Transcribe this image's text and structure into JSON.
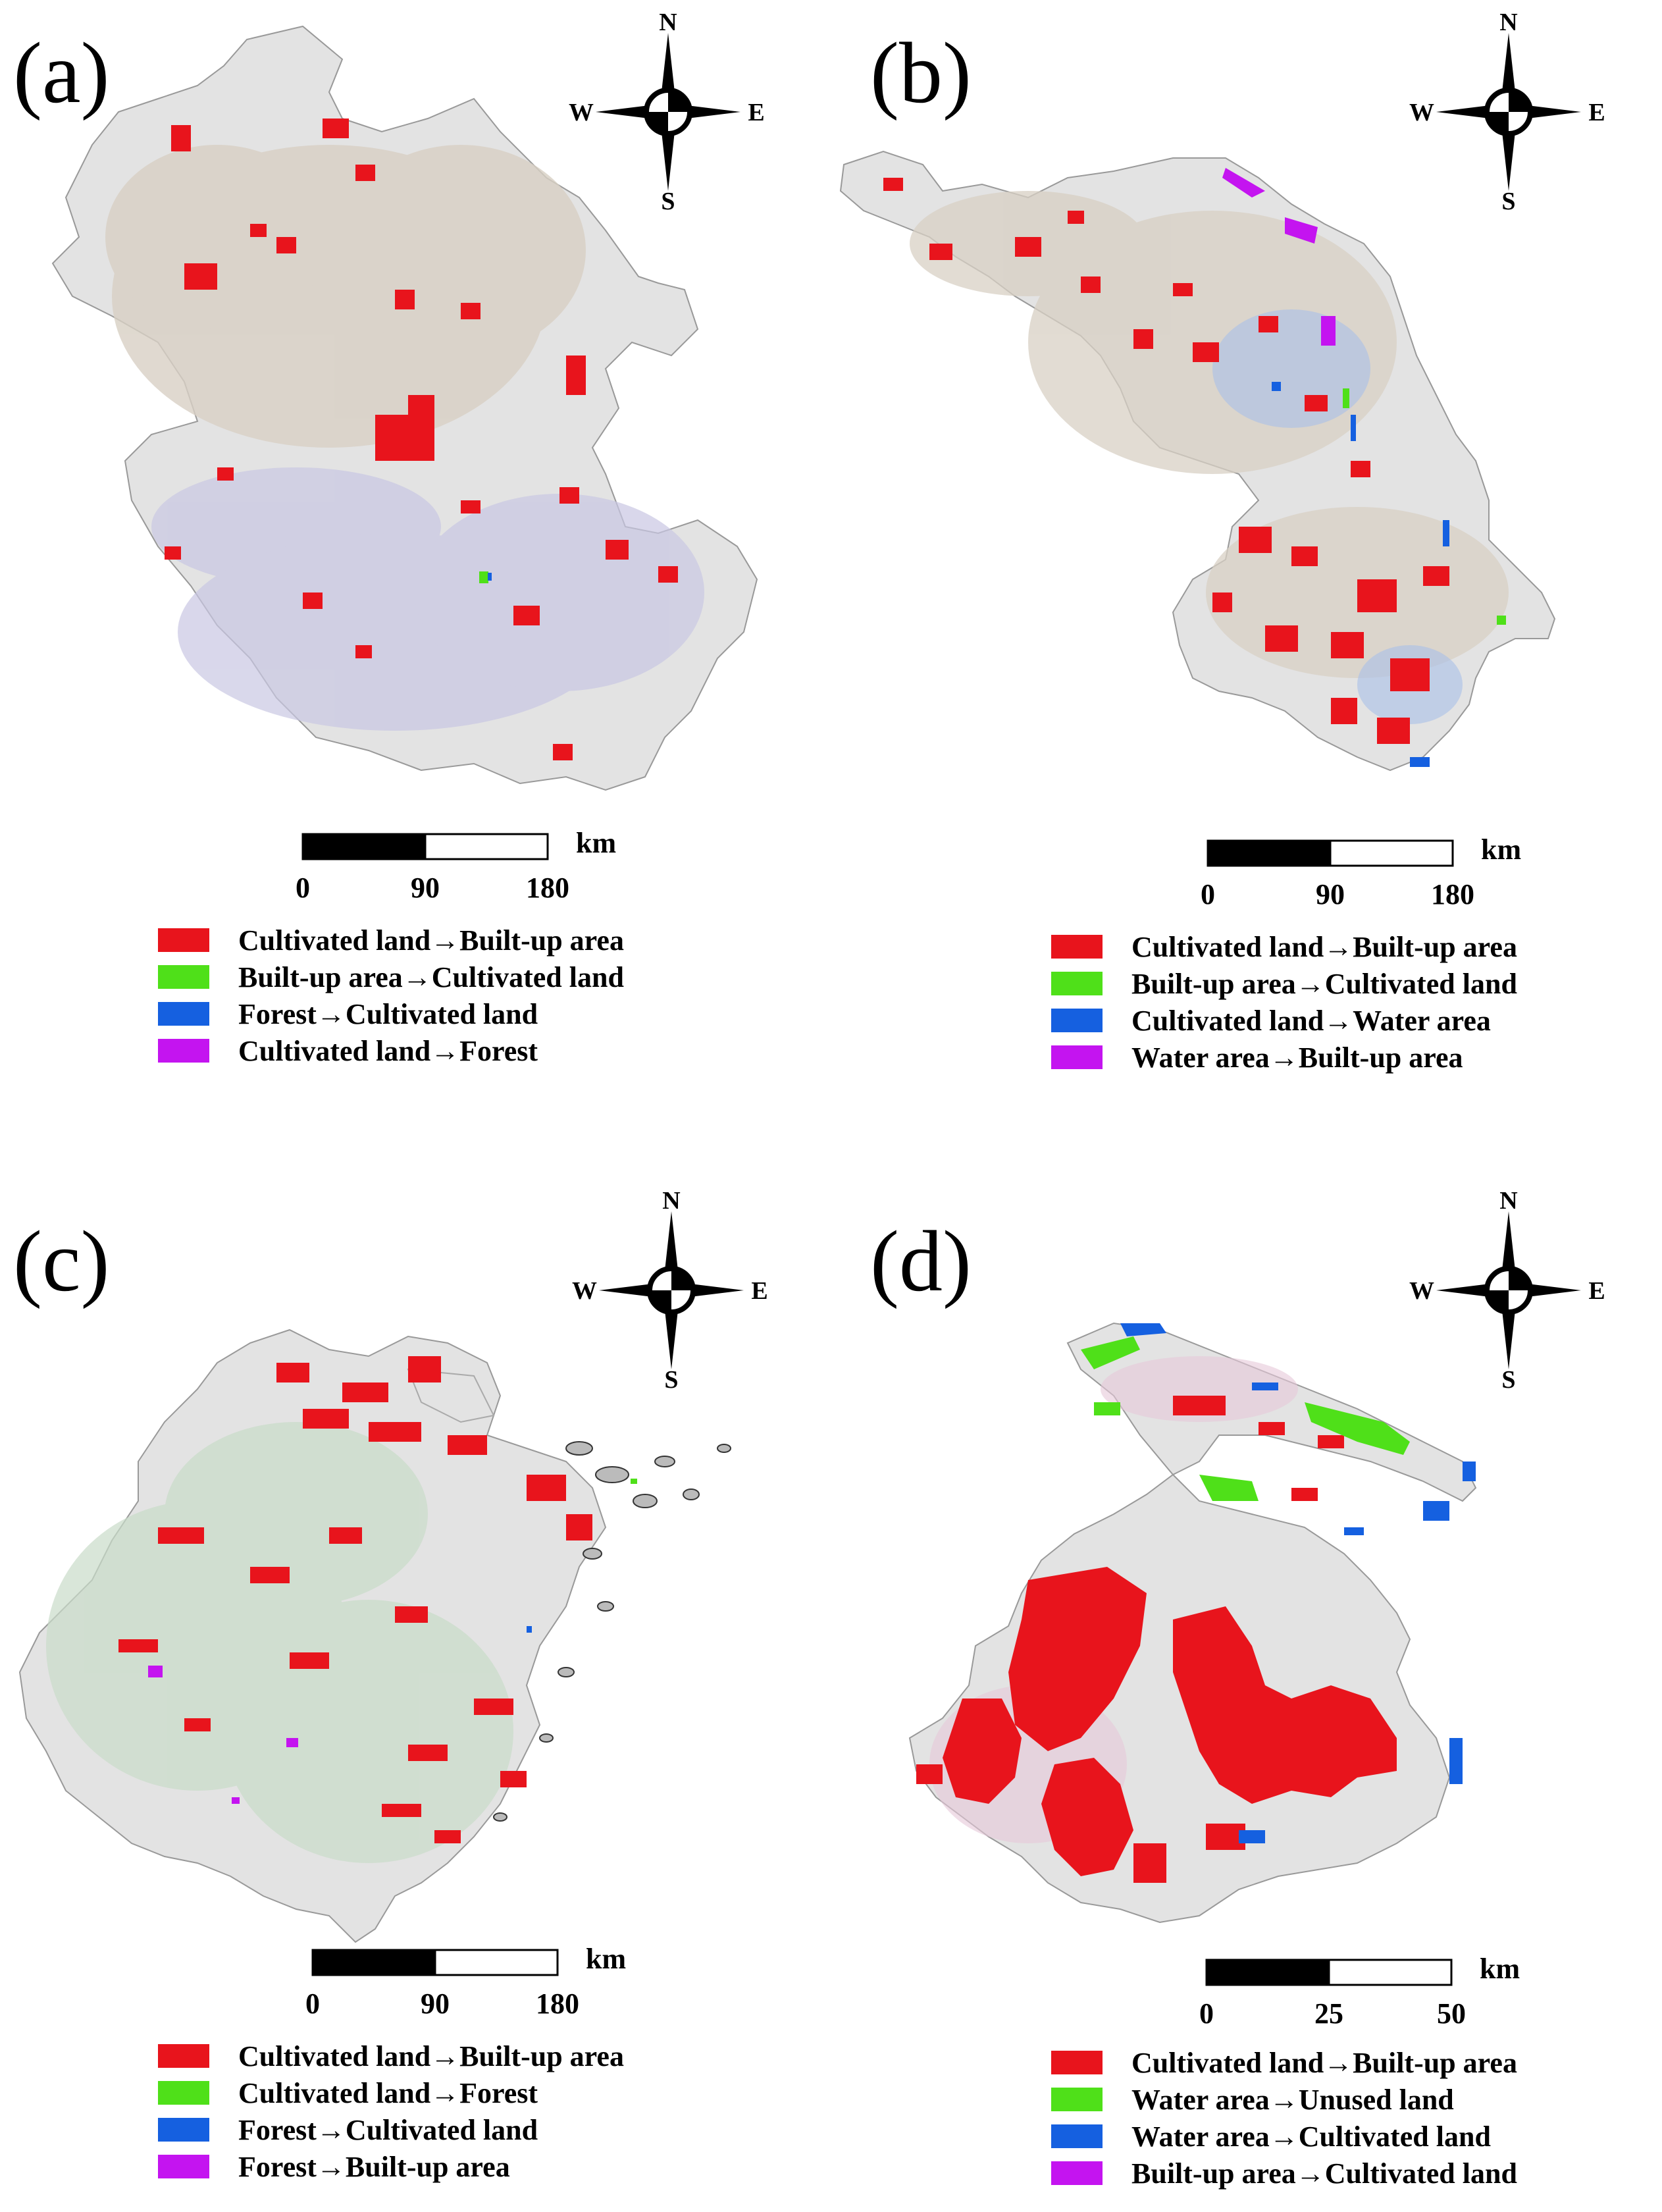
{
  "compass": {
    "n": "N",
    "s": "S",
    "e": "E",
    "w": "W"
  },
  "scale_unit": "km",
  "colors": {
    "red": "#e8141c",
    "green": "#4fe019",
    "blue": "#1560e0",
    "purple": "#c414f0",
    "basemap": "#e3e3e3",
    "cultivated_texture": "#d8d0c4",
    "forest_texture": "#c9c7e3",
    "zhejiang_texture": "#c9dcc9"
  },
  "panels": [
    {
      "label": "(a)",
      "scale_ticks": [
        "0",
        "90",
        "180"
      ],
      "legend": [
        {
          "color": "red",
          "label": "Cultivated land→Built-up area"
        },
        {
          "color": "green",
          "label": "Built-up area→Cultivated land"
        },
        {
          "color": "blue",
          "label": "Forest→Cultivated land"
        },
        {
          "color": "purple",
          "label": "Cultivated land→Forest"
        }
      ]
    },
    {
      "label": "(b)",
      "scale_ticks": [
        "0",
        "90",
        "180"
      ],
      "legend": [
        {
          "color": "red",
          "label": "Cultivated land→Built-up area"
        },
        {
          "color": "green",
          "label": "Built-up area→Cultivated land"
        },
        {
          "color": "blue",
          "label": "Cultivated land→Water area"
        },
        {
          "color": "purple",
          "label": "Water area→Built-up area"
        }
      ]
    },
    {
      "label": "(c)",
      "scale_ticks": [
        "0",
        "90",
        "180"
      ],
      "legend": [
        {
          "color": "red",
          "label": "Cultivated land→Built-up area"
        },
        {
          "color": "green",
          "label": "Cultivated land→Forest"
        },
        {
          "color": "blue",
          "label": "Forest→Cultivated land"
        },
        {
          "color": "purple",
          "label": "Forest→Built-up area"
        }
      ]
    },
    {
      "label": "(d)",
      "scale_ticks": [
        "0",
        "25",
        "50"
      ],
      "legend": [
        {
          "color": "red",
          "label": "Cultivated land→Built-up area"
        },
        {
          "color": "green",
          "label": "Water area→Unused land"
        },
        {
          "color": "blue",
          "label": "Water area→Cultivated land"
        },
        {
          "color": "purple",
          "label": "Built-up area→Cultivated land"
        }
      ]
    }
  ]
}
